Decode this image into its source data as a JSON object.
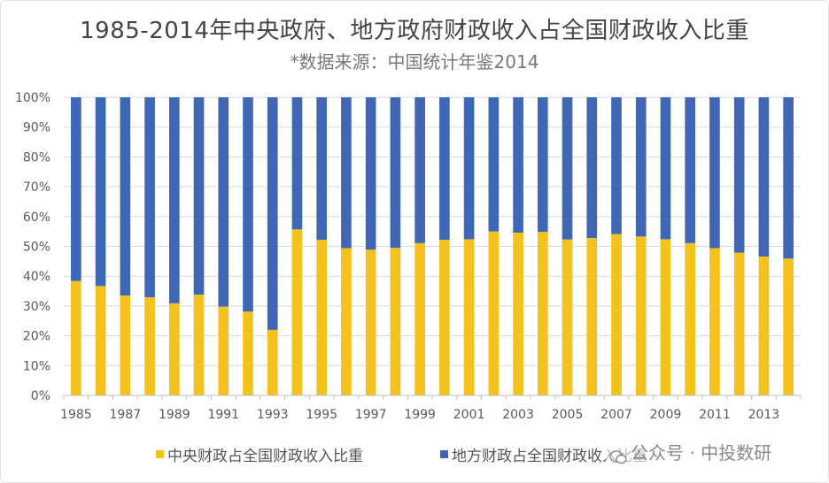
{
  "colors": {
    "central": "#f4c21f",
    "local": "#3f67b3",
    "grid": "#d9d9d9",
    "axis_text": "#595959"
  },
  "watermark": {
    "text": "公众号 · 中投数研",
    "icon": "wechat-icon"
  },
  "chart_data": {
    "type": "bar",
    "stacked": true,
    "percent": true,
    "title": "1985-2014年中央政府、地方政府财政收入占全国财政收入比重",
    "subtitle": "*数据来源：中国统计年鉴2014",
    "xlabel": "",
    "ylabel": "",
    "ylim": [
      0,
      100
    ],
    "yticks": [
      "0%",
      "10%",
      "20%",
      "30%",
      "40%",
      "50%",
      "60%",
      "70%",
      "80%",
      "90%",
      "100%"
    ],
    "grid": true,
    "legend_position": "bottom",
    "categories": [
      "1985",
      "1986",
      "1987",
      "1988",
      "1989",
      "1990",
      "1991",
      "1992",
      "1993",
      "1994",
      "1995",
      "1996",
      "1997",
      "1998",
      "1999",
      "2000",
      "2001",
      "2002",
      "2003",
      "2004",
      "2005",
      "2006",
      "2007",
      "2008",
      "2009",
      "2010",
      "2011",
      "2012",
      "2013",
      "2014"
    ],
    "xtick_labels": [
      "1985",
      "1987",
      "1989",
      "1991",
      "1993",
      "1995",
      "1997",
      "1999",
      "2001",
      "2003",
      "2005",
      "2007",
      "2009",
      "2011",
      "2013"
    ],
    "series": [
      {
        "name": "中央财政占全国财政收入比重",
        "values": [
          38.4,
          36.7,
          33.5,
          32.9,
          30.9,
          33.8,
          29.8,
          28.1,
          22.0,
          55.7,
          52.2,
          49.4,
          48.9,
          49.5,
          51.1,
          52.2,
          52.4,
          55.0,
          54.6,
          54.9,
          52.3,
          52.8,
          54.1,
          53.3,
          52.4,
          51.1,
          49.4,
          47.9,
          46.6,
          45.9
        ]
      },
      {
        "name": "地方财政占全国财政收入比重",
        "values": [
          61.6,
          63.3,
          66.5,
          67.1,
          69.1,
          66.2,
          70.2,
          71.9,
          78.0,
          44.3,
          47.8,
          50.6,
          51.1,
          50.5,
          48.9,
          47.8,
          47.6,
          45.0,
          45.4,
          45.1,
          47.7,
          47.2,
          45.9,
          46.7,
          47.6,
          48.9,
          50.6,
          52.1,
          53.4,
          54.1
        ]
      }
    ]
  }
}
